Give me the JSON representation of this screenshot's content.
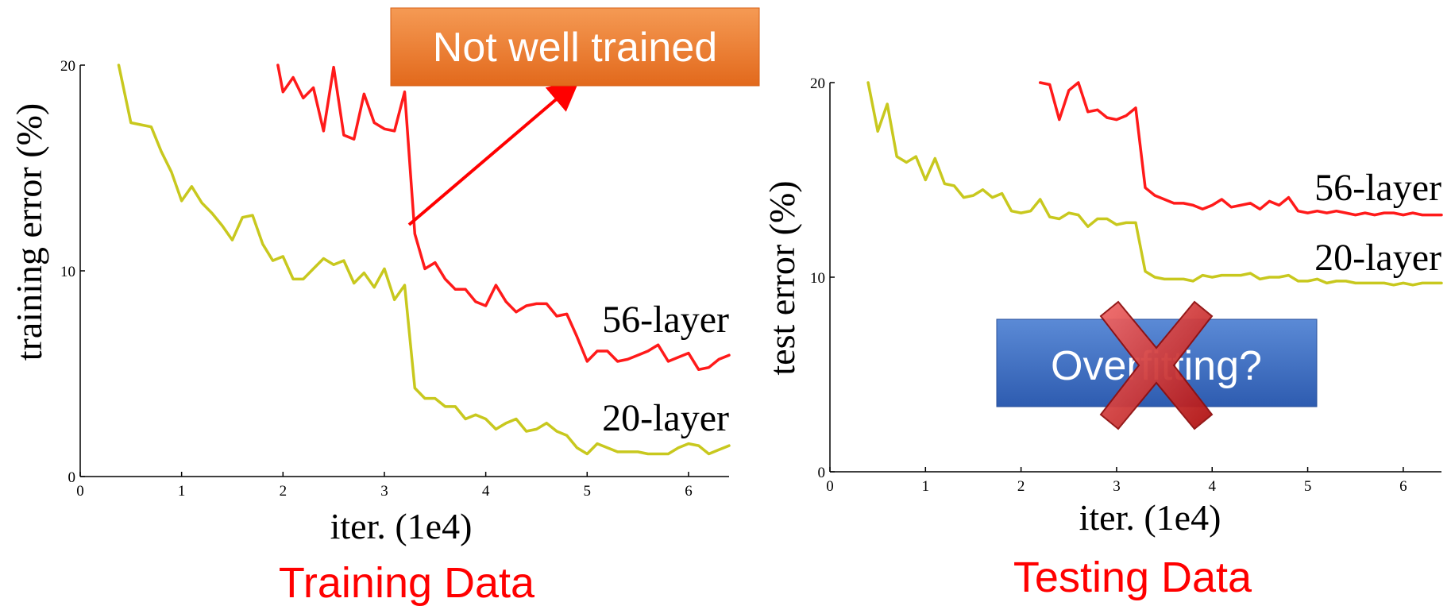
{
  "colors": {
    "series_56": "#ff1a1a",
    "series_20": "#c8c81e",
    "caption": "#ff0000",
    "callout_orange": "#ef7d2a",
    "callout_blue": "#3d6fc4",
    "cross_red": "#cc1f1f",
    "arrow_red": "#ff0000"
  },
  "callouts": {
    "not_well_trained": "Not well trained",
    "overfitting": "Overfitting?"
  },
  "chart_data": [
    {
      "type": "line",
      "caption": "Training Data",
      "xlabel": "iter. (1e4)",
      "ylabel": "training error (%)",
      "xlim": [
        0,
        6.4
      ],
      "ylim": [
        0,
        20
      ],
      "xticks": [
        "0",
        "1",
        "2",
        "3",
        "4",
        "5",
        "6"
      ],
      "yticks": [
        "0",
        "10",
        "20"
      ],
      "series": [
        {
          "name": "56-layer",
          "color": "#ff1a1a",
          "x": [
            1.95,
            2.0,
            2.1,
            2.2,
            2.3,
            2.4,
            2.5,
            2.6,
            2.7,
            2.8,
            2.9,
            3.0,
            3.1,
            3.2,
            3.3,
            3.4,
            3.5,
            3.6,
            3.7,
            3.8,
            3.9,
            4.0,
            4.1,
            4.2,
            4.3,
            4.4,
            4.5,
            4.6,
            4.7,
            4.8,
            4.9,
            5.0,
            5.1,
            5.2,
            5.3,
            5.4,
            5.5,
            5.6,
            5.7,
            5.8,
            5.9,
            6.0,
            6.1,
            6.2,
            6.3,
            6.4
          ],
          "y": [
            20.0,
            18.7,
            19.4,
            18.4,
            18.9,
            16.8,
            19.9,
            16.6,
            16.4,
            18.6,
            17.2,
            16.9,
            16.8,
            18.7,
            11.8,
            10.1,
            10.4,
            9.6,
            9.1,
            9.1,
            8.5,
            8.3,
            9.3,
            8.5,
            8.0,
            8.3,
            8.4,
            8.4,
            7.8,
            7.9,
            6.8,
            5.6,
            6.1,
            6.1,
            5.6,
            5.7,
            5.9,
            6.1,
            6.4,
            5.6,
            5.8,
            6.0,
            5.2,
            5.3,
            5.7,
            5.9
          ]
        },
        {
          "name": "20-layer",
          "color": "#c8c81e",
          "x": [
            0.38,
            0.5,
            0.6,
            0.7,
            0.8,
            0.9,
            1.0,
            1.1,
            1.2,
            1.3,
            1.4,
            1.5,
            1.6,
            1.7,
            1.8,
            1.9,
            2.0,
            2.1,
            2.2,
            2.3,
            2.4,
            2.5,
            2.6,
            2.7,
            2.8,
            2.9,
            3.0,
            3.1,
            3.2,
            3.3,
            3.4,
            3.5,
            3.6,
            3.7,
            3.8,
            3.9,
            4.0,
            4.1,
            4.2,
            4.3,
            4.4,
            4.5,
            4.6,
            4.7,
            4.8,
            4.9,
            5.0,
            5.1,
            5.2,
            5.3,
            5.4,
            5.5,
            5.6,
            5.7,
            5.8,
            5.9,
            6.0,
            6.1,
            6.2,
            6.3,
            6.4
          ],
          "y": [
            20.0,
            17.2,
            17.1,
            17.0,
            15.8,
            14.8,
            13.4,
            14.1,
            13.3,
            12.8,
            12.2,
            11.5,
            12.6,
            12.7,
            11.3,
            10.5,
            10.7,
            9.6,
            9.6,
            10.1,
            10.6,
            10.3,
            10.5,
            9.4,
            9.9,
            9.2,
            10.1,
            8.6,
            9.3,
            4.3,
            3.8,
            3.8,
            3.4,
            3.4,
            2.8,
            3.0,
            2.8,
            2.3,
            2.6,
            2.8,
            2.2,
            2.3,
            2.6,
            2.2,
            2.0,
            1.4,
            1.1,
            1.6,
            1.4,
            1.2,
            1.2,
            1.2,
            1.1,
            1.1,
            1.1,
            1.4,
            1.6,
            1.5,
            1.1,
            1.3,
            1.5
          ]
        }
      ]
    },
    {
      "type": "line",
      "caption": "Testing Data",
      "xlabel": "iter. (1e4)",
      "ylabel": "test error (%)",
      "xlim": [
        0,
        6.4
      ],
      "ylim": [
        0,
        20
      ],
      "xticks": [
        "0",
        "1",
        "2",
        "3",
        "4",
        "5",
        "6"
      ],
      "yticks": [
        "0",
        "10",
        "20"
      ],
      "series": [
        {
          "name": "56-layer",
          "color": "#ff1a1a",
          "x": [
            2.2,
            2.3,
            2.4,
            2.5,
            2.6,
            2.7,
            2.8,
            2.9,
            3.0,
            3.1,
            3.2,
            3.3,
            3.4,
            3.5,
            3.6,
            3.7,
            3.8,
            3.9,
            4.0,
            4.1,
            4.2,
            4.3,
            4.4,
            4.5,
            4.6,
            4.7,
            4.8,
            4.9,
            5.0,
            5.1,
            5.2,
            5.3,
            5.4,
            5.5,
            5.6,
            5.7,
            5.8,
            5.9,
            6.0,
            6.1,
            6.2,
            6.3,
            6.4
          ],
          "y": [
            20.0,
            19.9,
            18.1,
            19.6,
            20.0,
            18.5,
            18.6,
            18.2,
            18.1,
            18.3,
            18.7,
            14.6,
            14.2,
            14.0,
            13.8,
            13.8,
            13.7,
            13.5,
            13.7,
            14.0,
            13.6,
            13.7,
            13.8,
            13.5,
            13.9,
            13.7,
            14.1,
            13.4,
            13.3,
            13.4,
            13.3,
            13.4,
            13.3,
            13.2,
            13.3,
            13.2,
            13.3,
            13.3,
            13.2,
            13.3,
            13.2,
            13.2,
            13.2
          ]
        },
        {
          "name": "20-layer",
          "color": "#c8c81e",
          "x": [
            0.4,
            0.5,
            0.6,
            0.7,
            0.8,
            0.9,
            1.0,
            1.1,
            1.2,
            1.3,
            1.4,
            1.5,
            1.6,
            1.7,
            1.8,
            1.9,
            2.0,
            2.1,
            2.2,
            2.3,
            2.4,
            2.5,
            2.6,
            2.7,
            2.8,
            2.9,
            3.0,
            3.1,
            3.2,
            3.3,
            3.4,
            3.5,
            3.6,
            3.7,
            3.8,
            3.9,
            4.0,
            4.1,
            4.2,
            4.3,
            4.4,
            4.5,
            4.6,
            4.7,
            4.8,
            4.9,
            5.0,
            5.1,
            5.2,
            5.3,
            5.4,
            5.5,
            5.6,
            5.7,
            5.8,
            5.9,
            6.0,
            6.1,
            6.2,
            6.3,
            6.4
          ],
          "y": [
            20.0,
            17.5,
            18.9,
            16.2,
            15.9,
            16.2,
            15.0,
            16.1,
            14.8,
            14.7,
            14.1,
            14.2,
            14.5,
            14.1,
            14.3,
            13.4,
            13.3,
            13.4,
            14.0,
            13.1,
            13.0,
            13.3,
            13.2,
            12.6,
            13.0,
            13.0,
            12.7,
            12.8,
            12.8,
            10.3,
            10.0,
            9.9,
            9.9,
            9.9,
            9.8,
            10.1,
            10.0,
            10.1,
            10.1,
            10.1,
            10.2,
            9.9,
            10.0,
            10.0,
            10.1,
            9.8,
            9.8,
            9.9,
            9.7,
            9.8,
            9.8,
            9.7,
            9.7,
            9.7,
            9.7,
            9.6,
            9.7,
            9.6,
            9.7,
            9.7,
            9.7
          ]
        }
      ]
    }
  ]
}
